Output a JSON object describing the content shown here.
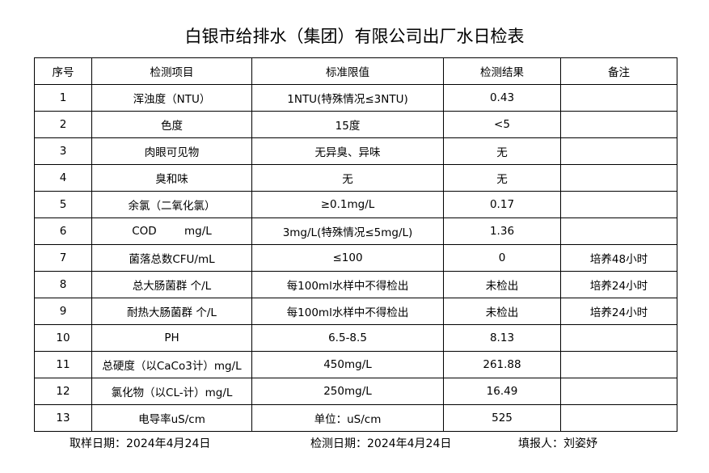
{
  "title": "白银市给排水（集团）有限公司出厂水日检表",
  "headers": [
    "序号",
    "检测项目",
    "标准限值",
    "检测结果",
    "备注"
  ],
  "rows": [
    [
      "1",
      "浑浊度（NTU）",
      "1NTU(特殊情况≤3NTU)",
      "0.43",
      ""
    ],
    [
      "2",
      "色度",
      "15度",
      "<5",
      ""
    ],
    [
      "3",
      "肉眼可见物",
      "无异臭、异味",
      "无",
      ""
    ],
    [
      "4",
      "臭和味",
      "无",
      "无",
      ""
    ],
    [
      "5",
      "余氯（二氧化氯）",
      "≥0.1mg/L",
      "0.17",
      ""
    ],
    [
      "6",
      "COD        mg/L",
      "3mg/L(特殊情况≤5mg/L)",
      "1.36",
      ""
    ],
    [
      "7",
      "菌落总数CFU/mL",
      "≤100",
      "0",
      "培养48小时"
    ],
    [
      "8",
      "总大肠菌群 个/L",
      "每100ml水样中不得检出",
      "未检出",
      "培养24小时"
    ],
    [
      "9",
      "耐热大肠菌群 个/L",
      "每100ml水样中不得检出",
      "未检出",
      "培养24小时"
    ],
    [
      "10",
      "PH",
      "6.5-8.5",
      "8.13",
      ""
    ],
    [
      "11",
      "总硬度（以CaCo3计）mg/L",
      "450mg/L",
      "261.88",
      ""
    ],
    [
      "12",
      "氯化物（以CL-计）mg/L",
      "250mg/L",
      "16.49",
      ""
    ],
    [
      "13",
      "电导率uS/cm",
      "单位：uS/cm",
      "525",
      ""
    ]
  ],
  "footer": {
    "sampling_date": "取样日期：2024年4月24日",
    "test_date": "检测日期：2024年4月24日",
    "reporter": "填报人：刘姿妤"
  }
}
